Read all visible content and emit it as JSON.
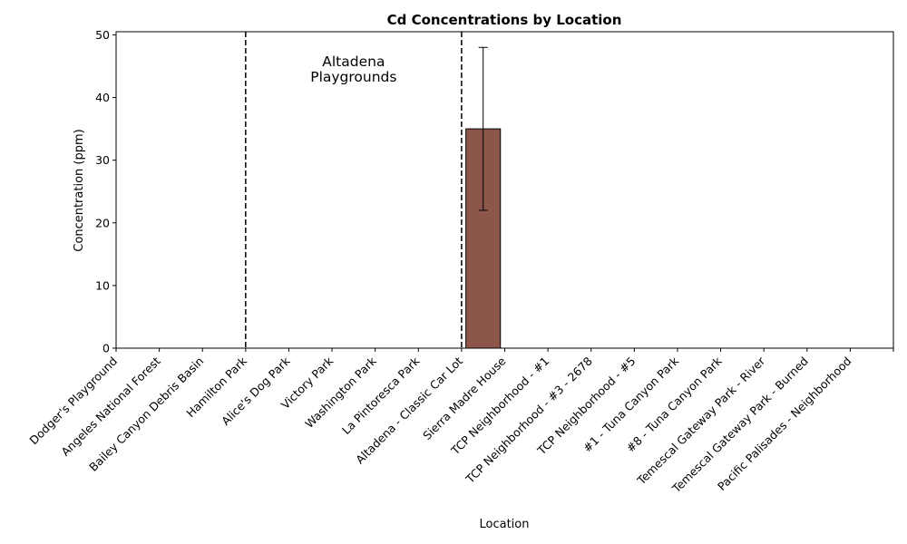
{
  "chart_data": {
    "type": "bar",
    "title": "Cd Concentrations by Location",
    "xlabel": "Location",
    "ylabel": "Concentration (ppm)",
    "ylim": [
      0,
      50.5
    ],
    "yticks": [
      0,
      10,
      20,
      30,
      40,
      50
    ],
    "categories": [
      "Dodger's Playground",
      "Angeles National Forest",
      "Bailey Canyon Debris Basin",
      "Hamilton Park",
      "Alice's Dog Park",
      "Victory Park",
      "Washington Park",
      "La Pintoresca Park",
      "Altadena - Classic Car Lot",
      "Sierra Madre House",
      "TCP Neighborhood - #1",
      "TCP Neighborhood - #3 - 2678",
      "TCP Neighborhood - #5",
      "#1 - Tuna Canyon Park",
      "#8 - Tuna Canyon Park",
      "Temescal Gateway Park - River",
      "Temescal Gateway Park - Burned",
      "Pacific Palisades - Neighborhood"
    ],
    "values": [
      null,
      null,
      null,
      null,
      null,
      null,
      null,
      null,
      35,
      null,
      null,
      null,
      null,
      null,
      null,
      null,
      null,
      null
    ],
    "error_low": [
      null,
      null,
      null,
      null,
      null,
      null,
      null,
      null,
      22,
      null,
      null,
      null,
      null,
      null,
      null,
      null,
      null,
      null
    ],
    "error_high": [
      null,
      null,
      null,
      null,
      null,
      null,
      null,
      null,
      48,
      null,
      null,
      null,
      null,
      null,
      null,
      null,
      null,
      null
    ],
    "bar_color": "#8c564b",
    "dividers_after_category": [
      2.5,
      7.5
    ],
    "annotation": {
      "lines": [
        "Altadena",
        "Playgrounds"
      ],
      "x_category": 5,
      "y_value": 44.5
    },
    "grid": false
  }
}
